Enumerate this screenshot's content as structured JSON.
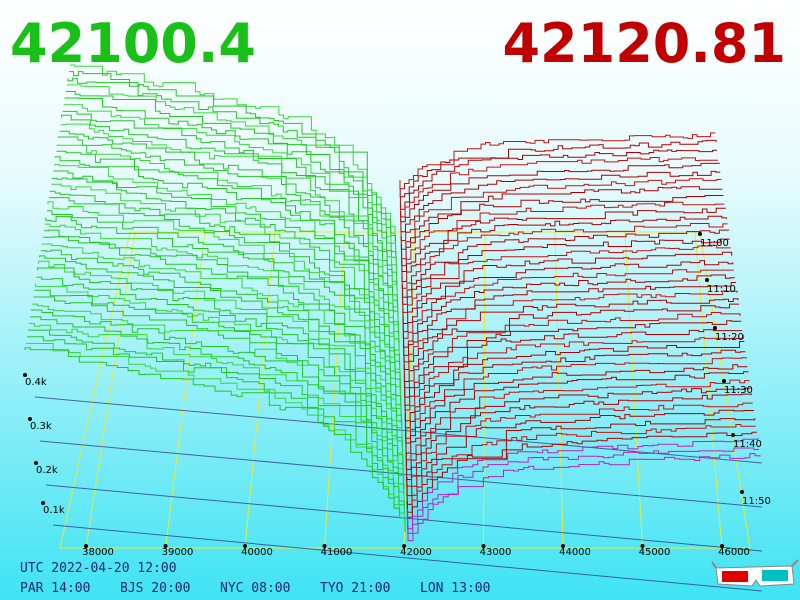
{
  "header": {
    "bid": "42100.4",
    "ask": "42120.81"
  },
  "price_axis": {
    "labels": [
      "38000",
      "39000",
      "40000",
      "41000",
      "42000",
      "43000",
      "44000",
      "45000",
      "46000"
    ]
  },
  "depth_axis": {
    "labels": [
      "0.4k",
      "0.3k",
      "0.2k",
      "0.1k"
    ]
  },
  "time_axis": {
    "labels": [
      "11:00",
      "11:10",
      "11:20",
      "11:30",
      "11:40",
      "11:50"
    ]
  },
  "footer": {
    "utc": "UTC 2022-04-20 12:00",
    "clocks": [
      "PAR 14:00",
      "BJS 20:00",
      "NYC 08:00",
      "TYO 21:00",
      "LON 13:00"
    ]
  }
}
